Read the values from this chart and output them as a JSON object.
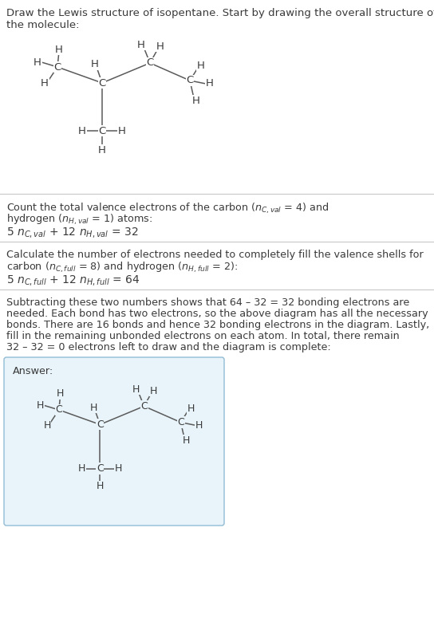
{
  "title_text": "Draw the Lewis structure of isopentane. Start by drawing the overall structure of\nthe molecule:",
  "section1_line1": "Count the total valence electrons of the carbon (",
  "section1_line2": ") and",
  "section1_line3": " = 1) atoms:",
  "section1_formula_prefix": "5 ",
  "section1_formula_mid": " + 12 ",
  "section1_formula_suffix": " = 32",
  "section2_line1": "Calculate the number of electrons needed to completely fill the valence shells for",
  "section2_line2": "carbon (",
  "section2_line3": " = 8) and hydrogen (",
  "section2_line4": " = 2):",
  "section2_formula_prefix": "5 ",
  "section2_formula_mid": " + 12 ",
  "section2_formula_suffix": " = 64",
  "section3_text": "Subtracting these two numbers shows that 64 – 32 = 32 bonding electrons are\nneeded. Each bond has two electrons, so the above diagram has all the necessary\nbonds. There are 16 bonds and hence 32 bonding electrons in the diagram. Lastly,\nfill in the remaining unbonded electrons on each atom. In total, there remain\n32 – 32 = 0 electrons left to draw and the diagram is complete:",
  "answer_label": "Answer:",
  "bg_color": "#ffffff",
  "text_color": "#3a3a3a",
  "answer_box_color": "#e8f4fa",
  "answer_box_border": "#90bcd4",
  "line_color": "#c8c8c8",
  "atom_color": "#3a3a3a",
  "bond_color": "#5a5a5a",
  "font_size_title": 9.5,
  "font_size_body": 9.2,
  "font_size_formula": 10.0,
  "font_size_atom": 9.5
}
